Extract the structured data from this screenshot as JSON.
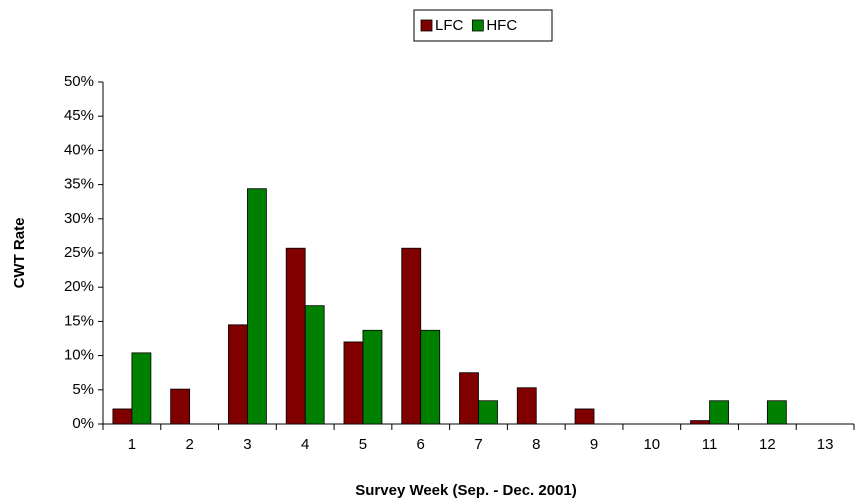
{
  "chart_data": {
    "type": "bar",
    "x_label": "Survey Week (Sep. - Dec. 2001)",
    "y_label": "CWT Rate",
    "categories": [
      "1",
      "2",
      "3",
      "4",
      "5",
      "6",
      "7",
      "8",
      "9",
      "10",
      "11",
      "12",
      "13"
    ],
    "series": [
      {
        "name": "LFC",
        "color": "#800000",
        "values": [
          2.2,
          5.1,
          14.5,
          25.7,
          12.0,
          25.7,
          7.5,
          5.3,
          2.2,
          0,
          0.5,
          0,
          0
        ]
      },
      {
        "name": "HFC",
        "color": "#008000",
        "values": [
          10.4,
          0,
          34.4,
          17.3,
          13.7,
          13.7,
          3.4,
          0,
          0,
          0,
          3.4,
          3.4,
          0
        ]
      }
    ],
    "ylim": [
      0,
      50
    ],
    "yticks": [
      {
        "value": 0,
        "label": "0%"
      },
      {
        "value": 5,
        "label": "5%"
      },
      {
        "value": 10,
        "label": "10%"
      },
      {
        "value": 15,
        "label": "15%"
      },
      {
        "value": 20,
        "label": "20%"
      },
      {
        "value": 25,
        "label": "25%"
      },
      {
        "value": 30,
        "label": "30%"
      },
      {
        "value": 35,
        "label": "35%"
      },
      {
        "value": 40,
        "label": "40%"
      },
      {
        "value": 45,
        "label": "45%"
      },
      {
        "value": 50,
        "label": "50%"
      }
    ],
    "grid": false,
    "legend": "top"
  }
}
